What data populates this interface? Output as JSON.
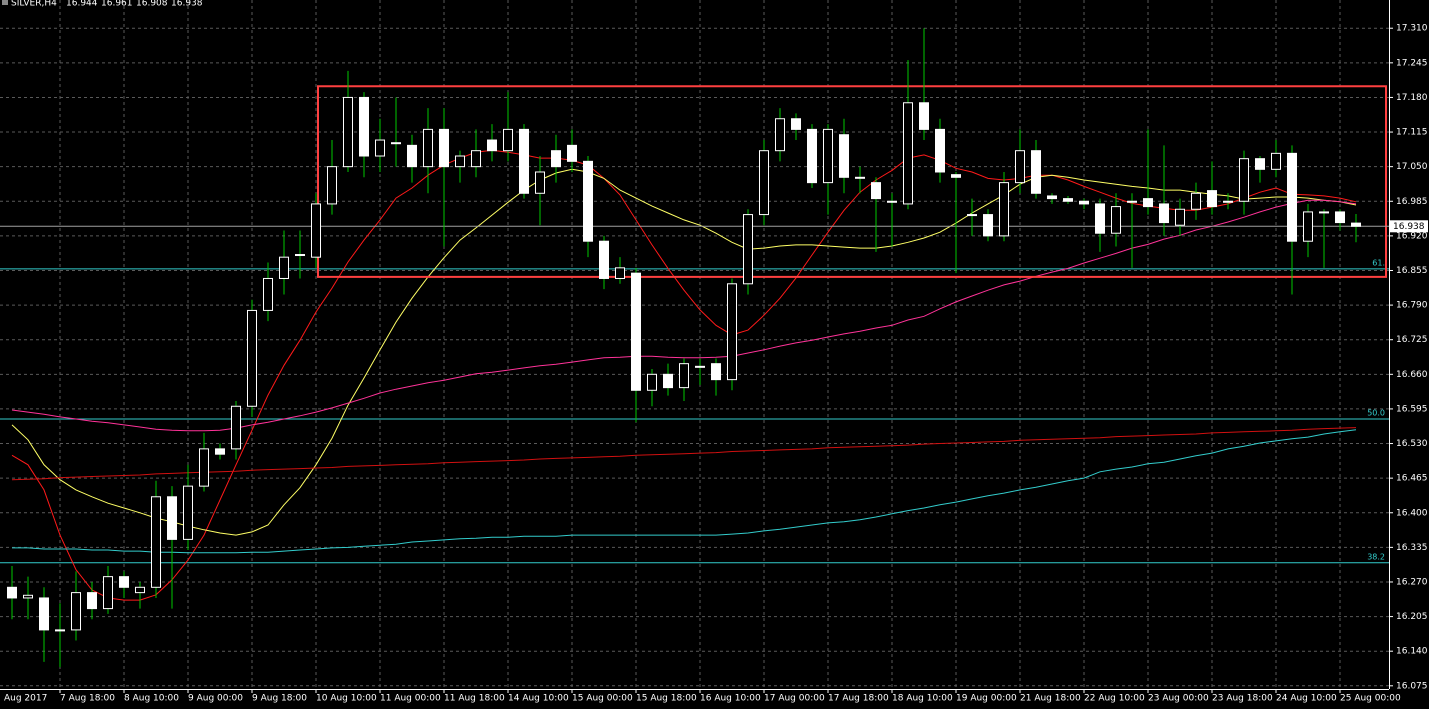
{
  "chart_data": {
    "type": "candlestick",
    "title": "SILVER,H4",
    "last_ohlc": [
      16.944,
      16.961,
      16.908,
      16.938
    ],
    "first_label": "Aug 2017",
    "categories": [
      null,
      null,
      null,
      "7 Aug 18:00",
      null,
      null,
      null,
      "8 Aug 10:00",
      null,
      null,
      null,
      "9 Aug 00:00",
      null,
      null,
      null,
      "9 Aug 18:00",
      null,
      null,
      null,
      "10 Aug 10:00",
      null,
      null,
      null,
      "11 Aug 00:00",
      null,
      null,
      null,
      "11 Aug 18:00",
      null,
      null,
      null,
      "14 Aug 10:00",
      null,
      null,
      null,
      "15 Aug 00:00",
      null,
      null,
      null,
      "15 Aug 18:00",
      null,
      null,
      null,
      "16 Aug 10:00",
      null,
      null,
      null,
      "17 Aug 00:00",
      null,
      null,
      null,
      "17 Aug 18:00",
      null,
      null,
      null,
      "18 Aug 10:00",
      null,
      null,
      null,
      "19 Aug 00:00",
      null,
      null,
      null,
      "21 Aug 18:00",
      null,
      null,
      null,
      "22 Aug 10:00",
      null,
      null,
      null,
      "23 Aug 00:00",
      null,
      null,
      null,
      "23 Aug 18:00",
      null,
      null,
      null,
      "24 Aug 10:00",
      null,
      null,
      null,
      "25 Aug 00:00",
      null
    ],
    "open": [
      16.26,
      16.24,
      16.24,
      16.18,
      16.18,
      16.25,
      16.22,
      16.28,
      16.25,
      16.26,
      16.43,
      16.35,
      16.45,
      16.52,
      16.52,
      16.6,
      16.78,
      16.84,
      16.885,
      16.88,
      16.98,
      17.05,
      17.18,
      17.07,
      17.095,
      17.09,
      17.05,
      17.12,
      17.05,
      17.05,
      17.1,
      17.08,
      17.12,
      17.0,
      17.08,
      17.09,
      17.06,
      16.91,
      16.84,
      16.85,
      16.63,
      16.66,
      16.635,
      16.675,
      16.68,
      16.65,
      16.83,
      16.96,
      17.08,
      17.14,
      17.12,
      17.02,
      17.11,
      17.03,
      17.02,
      16.985,
      16.98,
      17.17,
      17.12,
      17.035,
      16.96,
      16.96,
      16.92,
      17.02,
      17.08,
      16.995,
      16.99,
      16.985,
      16.98,
      16.925,
      16.985,
      16.99,
      16.98,
      16.94,
      16.97,
      17.005,
      16.985,
      16.985,
      17.065,
      17.045,
      17.075,
      16.91,
      16.965,
      16.965,
      16.944
    ],
    "high": [
      16.3,
      16.28,
      16.26,
      16.23,
      16.29,
      16.27,
      16.3,
      16.29,
      16.27,
      16.46,
      16.45,
      16.49,
      16.55,
      16.53,
      16.61,
      16.8,
      16.87,
      16.93,
      16.93,
      17.0,
      17.1,
      17.23,
      17.19,
      17.14,
      17.18,
      17.11,
      17.16,
      17.16,
      17.08,
      17.12,
      17.13,
      17.19,
      17.13,
      17.07,
      17.11,
      17.12,
      17.07,
      16.92,
      16.88,
      16.86,
      16.67,
      16.68,
      16.69,
      16.69,
      16.69,
      16.84,
      16.97,
      17.1,
      17.16,
      17.15,
      17.13,
      17.13,
      17.14,
      17.05,
      17.03,
      17.0,
      17.25,
      17.31,
      17.14,
      17.04,
      16.99,
      16.97,
      17.04,
      17.12,
      17.1,
      17.0,
      16.995,
      16.99,
      16.99,
      17.0,
      17.0,
      17.12,
      17.09,
      16.99,
      17.02,
      17.06,
      17.0,
      17.08,
      17.07,
      17.1,
      17.09,
      16.98,
      16.97,
      16.97,
      16.961
    ],
    "low": [
      16.2,
      16.2,
      16.12,
      16.11,
      16.16,
      16.2,
      16.21,
      16.24,
      16.22,
      16.24,
      16.22,
      16.33,
      16.44,
      16.5,
      16.5,
      16.58,
      16.76,
      16.81,
      16.84,
      16.86,
      16.96,
      17.04,
      17.03,
      17.04,
      17.05,
      17.02,
      17.0,
      16.9,
      17.02,
      17.03,
      17.06,
      17.06,
      16.99,
      16.94,
      17.02,
      17.04,
      16.88,
      16.82,
      16.83,
      16.57,
      16.6,
      16.62,
      16.61,
      16.64,
      16.62,
      16.63,
      16.81,
      16.94,
      17.06,
      17.1,
      17.01,
      16.96,
      17.0,
      17.0,
      16.89,
      16.9,
      16.97,
      17.1,
      17.02,
      16.85,
      16.92,
      16.91,
      16.91,
      17.0,
      16.99,
      16.98,
      16.98,
      16.97,
      16.89,
      16.9,
      16.86,
      16.96,
      16.92,
      16.92,
      16.95,
      16.96,
      16.97,
      16.96,
      17.02,
      17.03,
      16.81,
      16.88,
      16.86,
      16.93,
      16.908
    ],
    "close": [
      16.24,
      16.245,
      16.18,
      16.18,
      16.25,
      16.22,
      16.28,
      16.26,
      16.26,
      16.43,
      16.35,
      16.45,
      16.52,
      16.51,
      16.6,
      16.78,
      16.84,
      16.88,
      16.885,
      16.98,
      17.05,
      17.18,
      17.07,
      17.1,
      17.095,
      17.05,
      17.12,
      17.05,
      17.07,
      17.08,
      17.08,
      17.12,
      17.0,
      17.04,
      17.05,
      17.06,
      16.91,
      16.84,
      16.86,
      16.63,
      16.66,
      16.635,
      16.68,
      16.675,
      16.65,
      16.83,
      16.96,
      17.08,
      17.14,
      17.12,
      17.02,
      17.12,
      17.03,
      17.03,
      16.99,
      16.985,
      17.17,
      17.12,
      17.04,
      17.03,
      16.96,
      16.92,
      17.02,
      17.08,
      17.0,
      16.99,
      16.985,
      16.98,
      16.925,
      16.975,
      16.985,
      16.975,
      16.945,
      16.97,
      17.0,
      16.975,
      16.985,
      17.065,
      17.045,
      17.075,
      16.91,
      16.965,
      16.965,
      16.945,
      16.938
    ],
    "bull_color": "#000000",
    "bear_color": "#ffffff",
    "wick_color": "#00c800",
    "lines": [
      {
        "color": "#ff1a1a",
        "values": [
          16.508,
          16.49,
          16.443,
          16.358,
          16.293,
          16.255,
          16.24,
          16.236,
          16.236,
          16.246,
          16.274,
          16.311,
          16.358,
          16.424,
          16.49,
          16.555,
          16.621,
          16.677,
          16.724,
          16.777,
          16.822,
          16.871,
          16.912,
          16.95,
          16.991,
          17.01,
          17.034,
          17.053,
          17.066,
          17.077,
          17.081,
          17.077,
          17.072,
          17.066,
          17.066,
          17.062,
          17.053,
          17.028,
          16.997,
          16.95,
          16.903,
          16.859,
          16.818,
          16.781,
          16.752,
          16.734,
          16.743,
          16.771,
          16.803,
          16.841,
          16.884,
          16.927,
          16.968,
          17.002,
          17.025,
          17.043,
          17.066,
          17.072,
          17.062,
          17.047,
          17.04,
          17.028,
          17.025,
          17.028,
          17.034,
          17.034,
          17.025,
          17.013,
          17.002,
          16.991,
          16.981,
          16.976,
          16.972,
          16.968,
          16.968,
          16.974,
          16.98,
          16.991,
          17.002,
          17.01,
          16.998,
          16.997,
          16.995,
          16.991,
          16.984
        ]
      },
      {
        "color": "#ffff66",
        "values": [
          16.565,
          16.537,
          16.49,
          16.462,
          16.443,
          16.43,
          16.418,
          16.409,
          16.4,
          16.39,
          16.383,
          16.375,
          16.368,
          16.362,
          16.358,
          16.364,
          16.377,
          16.415,
          16.447,
          16.49,
          16.54,
          16.602,
          16.653,
          16.706,
          16.758,
          16.803,
          16.843,
          16.879,
          16.912,
          16.935,
          16.959,
          16.983,
          17.006,
          17.025,
          17.038,
          17.045,
          17.04,
          17.028,
          17.006,
          16.991,
          16.976,
          16.963,
          16.95,
          16.94,
          16.925,
          16.908,
          16.895,
          16.897,
          16.901,
          16.903,
          16.903,
          16.901,
          16.899,
          16.897,
          16.897,
          16.901,
          16.908,
          16.916,
          16.927,
          16.944,
          16.963,
          16.98,
          16.997,
          17.017,
          17.03,
          17.034,
          17.03,
          17.025,
          17.021,
          17.017,
          17.013,
          17.01,
          17.006,
          17.006,
          17.002,
          16.998,
          16.995,
          16.989,
          16.991,
          16.993,
          16.993,
          16.991,
          16.987,
          16.984,
          16.978
        ]
      },
      {
        "color": "#ff3399",
        "values": [
          16.593,
          16.589,
          16.585,
          16.58,
          16.576,
          16.572,
          16.569,
          16.565,
          16.561,
          16.557,
          16.555,
          16.554,
          16.554,
          16.555,
          16.559,
          16.565,
          16.57,
          16.576,
          16.582,
          16.589,
          16.597,
          16.606,
          16.615,
          16.625,
          16.632,
          16.638,
          16.644,
          16.649,
          16.655,
          16.661,
          16.664,
          16.668,
          16.672,
          16.676,
          16.679,
          16.683,
          16.687,
          16.691,
          16.692,
          16.694,
          16.694,
          16.692,
          16.691,
          16.691,
          16.692,
          16.694,
          16.7,
          16.706,
          16.713,
          16.719,
          16.724,
          16.73,
          16.736,
          16.741,
          16.747,
          16.752,
          16.762,
          16.769,
          16.783,
          16.796,
          16.807,
          16.818,
          16.828,
          16.835,
          16.844,
          16.852,
          16.859,
          16.869,
          16.878,
          16.887,
          16.897,
          16.904,
          16.914,
          16.921,
          16.931,
          16.938,
          16.946,
          16.955,
          16.965,
          16.974,
          16.981,
          16.987,
          16.987,
          16.984,
          16.98
        ]
      },
      {
        "color": "#d01010",
        "values": [
          16.462,
          16.463,
          16.464,
          16.466,
          16.467,
          16.468,
          16.469,
          16.47,
          16.471,
          16.473,
          16.474,
          16.475,
          16.476,
          16.477,
          16.478,
          16.48,
          16.481,
          16.482,
          16.483,
          16.484,
          16.485,
          16.487,
          16.488,
          16.489,
          16.49,
          16.491,
          16.492,
          16.494,
          16.495,
          16.496,
          16.497,
          16.498,
          16.499,
          16.501,
          16.502,
          16.503,
          16.504,
          16.505,
          16.506,
          16.508,
          16.509,
          16.51,
          16.511,
          16.512,
          16.513,
          16.515,
          16.516,
          16.517,
          16.518,
          16.519,
          16.52,
          16.522,
          16.523,
          16.524,
          16.525,
          16.526,
          16.527,
          16.529,
          16.53,
          16.531,
          16.532,
          16.533,
          16.534,
          16.536,
          16.537,
          16.538,
          16.539,
          16.54,
          16.541,
          16.543,
          16.544,
          16.545,
          16.546,
          16.547,
          16.548,
          16.55,
          16.551,
          16.552,
          16.553,
          16.554,
          16.555,
          16.557,
          16.558,
          16.559,
          16.56
        ]
      },
      {
        "color": "#33cccc",
        "values": [
          16.334,
          16.334,
          16.332,
          16.332,
          16.332,
          16.33,
          16.33,
          16.328,
          16.328,
          16.326,
          16.326,
          16.325,
          16.325,
          16.325,
          16.325,
          16.326,
          16.326,
          16.328,
          16.33,
          16.332,
          16.334,
          16.335,
          16.337,
          16.339,
          16.341,
          16.345,
          16.347,
          16.349,
          16.351,
          16.352,
          16.354,
          16.354,
          16.356,
          16.356,
          16.356,
          16.358,
          16.358,
          16.358,
          16.358,
          16.358,
          16.358,
          16.358,
          16.358,
          16.358,
          16.358,
          16.36,
          16.362,
          16.366,
          16.369,
          16.373,
          16.377,
          16.381,
          16.383,
          16.387,
          16.392,
          16.398,
          16.404,
          16.409,
          16.415,
          16.42,
          16.426,
          16.432,
          16.437,
          16.443,
          16.448,
          16.454,
          16.46,
          16.465,
          16.477,
          16.482,
          16.486,
          16.492,
          16.495,
          16.501,
          16.507,
          16.512,
          16.52,
          16.525,
          16.531,
          16.535,
          16.539,
          16.542,
          16.548,
          16.552,
          16.556
        ]
      }
    ],
    "fib_levels": [
      {
        "value": 16.858,
        "label": "61."
      },
      {
        "value": 16.576,
        "label": "50.0"
      },
      {
        "value": 16.306,
        "label": "38.2"
      }
    ],
    "fib_color": "#33cccc",
    "box": {
      "ylim": [
        16.843,
        17.201
      ],
      "color": "#ff4040"
    },
    "ylim": [
      16.069,
      17.363
    ],
    "yticks": [
      16.075,
      {
        "value": 16.14,
        "label": "16.140"
      },
      16.205,
      {
        "value": 16.27,
        "label": "16.270"
      },
      16.335,
      {
        "value": 16.4,
        "label": "16.400"
      },
      16.465,
      {
        "value": 16.53,
        "label": "16.530"
      },
      16.595,
      {
        "value": 16.66,
        "label": "16.660"
      },
      16.725,
      {
        "value": 16.79,
        "label": "16.790"
      },
      16.855,
      {
        "value": 16.92,
        "label": "16.920"
      },
      16.985,
      {
        "value": 17.05,
        "label": "17.050"
      },
      17.115,
      {
        "value": 17.18,
        "label": "17.180"
      },
      17.245,
      {
        "value": 17.31,
        "label": "17.310"
      }
    ],
    "grid": true
  }
}
